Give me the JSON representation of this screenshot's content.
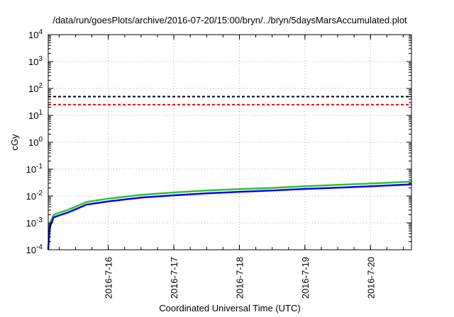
{
  "chart_data": {
    "type": "line",
    "title": "/data/run/goesPlots/archive/2016-07-20/15:00/bryn/../bryn/5daysMarsAccumulated.plot",
    "xlabel": "Coordinated Universal Time (UTC)",
    "ylabel": "cGy",
    "yscale": "log",
    "ylim": [
      0.0001,
      10000
    ],
    "yticks": [
      {
        "value": 10000,
        "base": "10",
        "exp": "4"
      },
      {
        "value": 1000,
        "base": "10",
        "exp": "3"
      },
      {
        "value": 100,
        "base": "10",
        "exp": "2"
      },
      {
        "value": 10,
        "base": "10",
        "exp": "1"
      },
      {
        "value": 1,
        "base": "10",
        "exp": "0"
      },
      {
        "value": 0.1,
        "base": "10",
        "exp": "-1"
      },
      {
        "value": 0.01,
        "base": "10",
        "exp": "-2"
      },
      {
        "value": 0.001,
        "base": "10",
        "exp": "-3"
      },
      {
        "value": 0.0001,
        "base": "10",
        "exp": "-4"
      }
    ],
    "xlim": [
      "2016-07-15T02:00",
      "2016-07-20T15:00"
    ],
    "xticks": [
      "2016-7-16",
      "2016-7-17",
      "2016-7-18",
      "2016-7-19",
      "2016-7-20"
    ],
    "xtick_values": [
      "2016-07-16T00:00",
      "2016-07-17T00:00",
      "2016-07-18T00:00",
      "2016-07-19T00:00",
      "2016-07-20T00:00"
    ],
    "grid": true,
    "reference_lines": [
      {
        "y": 50,
        "color": "#000000",
        "style": "dashed"
      },
      {
        "y": 25,
        "color": "#ff0000",
        "style": "dashed"
      }
    ],
    "series": [
      {
        "color": "#30c030",
        "x": [
          "2016-07-15T02:00",
          "2016-07-15T02:30",
          "2016-07-15T03:00",
          "2016-07-15T04:00",
          "2016-07-15T06:00",
          "2016-07-15T09:00",
          "2016-07-15T12:00",
          "2016-07-15T16:00",
          "2016-07-16T00:00",
          "2016-07-16T12:00",
          "2016-07-17T00:00",
          "2016-07-17T12:00",
          "2016-07-18T00:00",
          "2016-07-18T12:00",
          "2016-07-19T00:00",
          "2016-07-19T12:00",
          "2016-07-20T00:00",
          "2016-07-20T15:00"
        ],
        "y": [
          0.0001,
          0.0008,
          0.0012,
          0.002,
          0.0024,
          0.003,
          0.004,
          0.006,
          0.008,
          0.011,
          0.0135,
          0.016,
          0.018,
          0.02,
          0.023,
          0.026,
          0.029,
          0.034
        ]
      },
      {
        "color": "#0000ff",
        "x": [
          "2016-07-15T02:00",
          "2016-07-15T02:30",
          "2016-07-15T03:00",
          "2016-07-15T04:00",
          "2016-07-15T06:00",
          "2016-07-15T09:00",
          "2016-07-15T12:00",
          "2016-07-15T16:00",
          "2016-07-16T00:00",
          "2016-07-16T12:00",
          "2016-07-17T00:00",
          "2016-07-17T12:00",
          "2016-07-18T00:00",
          "2016-07-18T12:00",
          "2016-07-19T00:00",
          "2016-07-19T12:00",
          "2016-07-20T00:00",
          "2016-07-20T15:00"
        ],
        "y": [
          0.0001,
          0.0006,
          0.0009,
          0.0016,
          0.0019,
          0.0024,
          0.0032,
          0.0048,
          0.0063,
          0.0087,
          0.0106,
          0.0126,
          0.0143,
          0.016,
          0.0183,
          0.0205,
          0.0229,
          0.027
        ]
      }
    ]
  }
}
